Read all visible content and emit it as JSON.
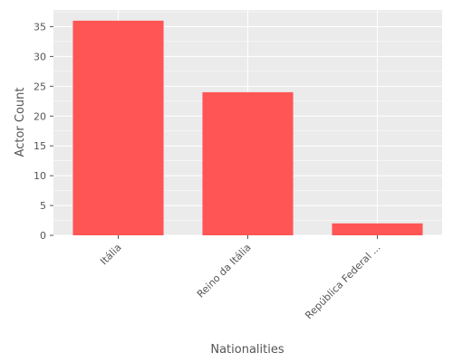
{
  "colors": {
    "bar": "#FF5555",
    "plot_background": "#EBEBEB",
    "grid": "#FFFFFF",
    "text": "#555555"
  },
  "chart_data": {
    "type": "bar",
    "categories": [
      "Itália",
      "Reino da Itália",
      "República Federal ..."
    ],
    "values": [
      36,
      24,
      2
    ],
    "xlabel": "Nationalities",
    "ylabel": "Actor Count",
    "ylim": [
      0,
      37.8
    ],
    "yticks": [
      0,
      5,
      10,
      15,
      20,
      25,
      30,
      35
    ],
    "grid": true,
    "legend": "none"
  }
}
